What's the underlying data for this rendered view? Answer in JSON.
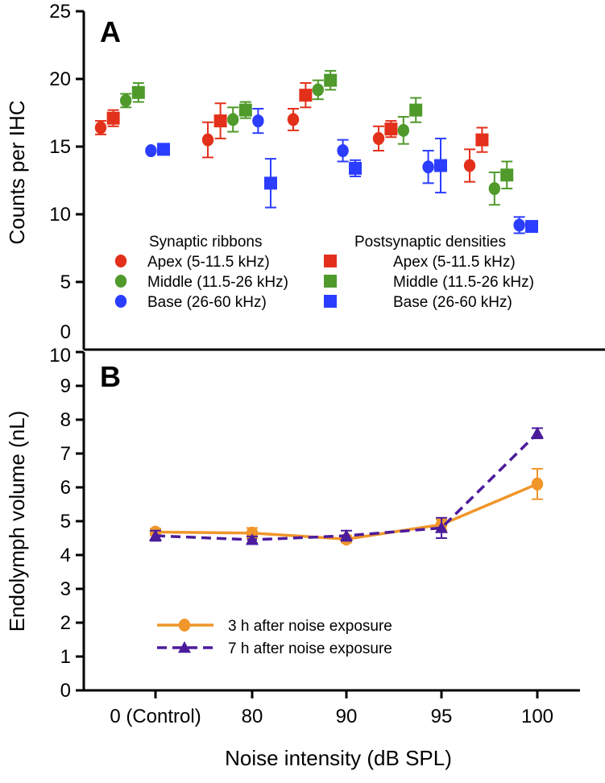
{
  "chart_data": [
    {
      "panel_label": "A",
      "type": "scatter",
      "ylabel": "Counts per IHC",
      "ylim": [
        0,
        25
      ],
      "yticks": [
        0,
        5,
        10,
        15,
        20,
        25
      ],
      "categories": [
        "0 (Control)",
        "80",
        "90",
        "95",
        "100"
      ],
      "legend_titles": [
        "Synaptic ribbons",
        "Postsynaptic densities"
      ],
      "series": [
        {
          "name": "Apex (5-11.5 kHz)",
          "group": "Synaptic ribbons",
          "marker": "circle",
          "color": "#e3301b",
          "values": [
            16.4,
            15.5,
            17.0,
            15.6,
            13.6
          ],
          "errors": [
            0.5,
            1.3,
            0.8,
            0.9,
            1.2
          ]
        },
        {
          "name": "Apex (5-11.5 kHz)",
          "group": "Postsynaptic densities",
          "marker": "square",
          "color": "#e3301b",
          "values": [
            17.1,
            16.9,
            18.8,
            16.3,
            15.5
          ],
          "errors": [
            0.6,
            1.3,
            0.9,
            0.6,
            0.9
          ]
        },
        {
          "name": "Middle (11.5-26 kHz)",
          "group": "Synaptic ribbons",
          "marker": "circle",
          "color": "#4f9a2b",
          "values": [
            18.4,
            17.0,
            19.2,
            16.2,
            11.9
          ],
          "errors": [
            0.5,
            0.9,
            0.7,
            1.0,
            1.2
          ]
        },
        {
          "name": "Middle (11.5-26 kHz)",
          "group": "Postsynaptic densities",
          "marker": "square",
          "color": "#4f9a2b",
          "values": [
            19.0,
            17.7,
            19.9,
            17.7,
            12.9
          ],
          "errors": [
            0.7,
            0.6,
            0.7,
            0.9,
            1.0
          ]
        },
        {
          "name": "Base (26-60 kHz)",
          "group": "Synaptic ribbons",
          "marker": "circle",
          "color": "#2b3dff",
          "values": [
            14.7,
            16.9,
            14.7,
            13.5,
            9.2
          ],
          "errors": [
            0.1,
            0.9,
            0.8,
            1.2,
            0.6
          ]
        },
        {
          "name": "Base (26-60 kHz)",
          "group": "Postsynaptic densities",
          "marker": "square",
          "color": "#2b3dff",
          "values": [
            14.8,
            12.3,
            13.4,
            13.6,
            9.1
          ],
          "errors": [
            0.4,
            1.8,
            0.6,
            2.0,
            0.3
          ]
        }
      ]
    },
    {
      "panel_label": "B",
      "type": "line",
      "xlabel": "Noise intensity (dB SPL)",
      "ylabel": "Endolymph volume  (nL)",
      "ylim": [
        0,
        10
      ],
      "yticks": [
        0,
        1,
        2,
        3,
        4,
        5,
        6,
        7,
        8,
        9,
        10
      ],
      "categories": [
        "0 (Control)",
        "80",
        "90",
        "95",
        "100"
      ],
      "legend_placement": "lower-left",
      "series": [
        {
          "name": "3 h after noise exposure",
          "marker": "circle",
          "line": "solid",
          "color": "#f0962a",
          "values": [
            4.68,
            4.65,
            4.47,
            4.9,
            6.1
          ],
          "errors": [
            0.1,
            0.15,
            0.1,
            0.15,
            0.45
          ]
        },
        {
          "name": "7 h after noise exposure",
          "marker": "triangle",
          "line": "dashed",
          "color": "#4b1c9c",
          "values": [
            4.57,
            4.45,
            4.57,
            4.8,
            7.6
          ],
          "errors": [
            0.15,
            0.1,
            0.15,
            0.3,
            0.15
          ]
        }
      ]
    }
  ]
}
